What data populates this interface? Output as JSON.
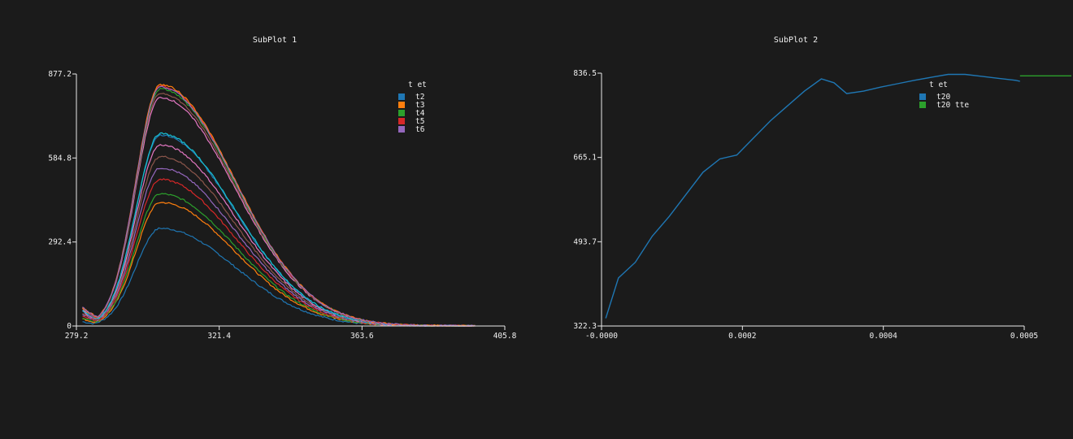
{
  "chart_data": [
    {
      "type": "line",
      "title": "SubPlot 1",
      "xlabel": "",
      "ylabel": "",
      "xlim": [
        279.2,
        405.8
      ],
      "ylim": [
        0,
        877.2
      ],
      "x_ticks": [
        "279.2",
        "321.4",
        "363.6",
        "405.8"
      ],
      "y_ticks": [
        "0",
        "292.4",
        "584.8",
        "877.2"
      ],
      "legend": {
        "title": "t  et",
        "placement": "top-right",
        "entries": [
          "t2",
          "t3",
          "t4",
          "t5",
          "t6"
        ]
      },
      "curve_model": {
        "x_start": 281,
        "x_end": 397,
        "peak_x": 304,
        "rise_sigma": 7.2,
        "tail_sigma": 22
      },
      "series": [
        {
          "name": "t2",
          "color": "#1f77b4",
          "peak": 340,
          "base": 15
        },
        {
          "name": "t3",
          "color": "#ff7f0e",
          "peak": 430,
          "base": 25
        },
        {
          "name": "t4",
          "color": "#2ca02c",
          "peak": 460,
          "base": 30
        },
        {
          "name": "t5",
          "color": "#d62728",
          "peak": 510,
          "base": 35
        },
        {
          "name": "t6",
          "color": "#9467bd",
          "peak": 550,
          "base": 40
        },
        {
          "name": "",
          "color": "#8c564b",
          "peak": 590,
          "base": 45
        },
        {
          "name": "",
          "color": "#e377c2",
          "peak": 630,
          "base": 50
        },
        {
          "name": "",
          "color": "#1f77b4",
          "peak": 665,
          "base": 55
        },
        {
          "name": "",
          "color": "#17becf",
          "peak": 670,
          "base": 55
        },
        {
          "name": "",
          "color": "#e377c2",
          "peak": 795,
          "base": 60
        },
        {
          "name": "",
          "color": "#8c564b",
          "peak": 810,
          "base": 60
        },
        {
          "name": "",
          "color": "#2ca02c",
          "peak": 825,
          "base": 62
        },
        {
          "name": "",
          "color": "#d62728",
          "peak": 835,
          "base": 62
        },
        {
          "name": "",
          "color": "#ff7f0e",
          "peak": 840,
          "base": 65
        },
        {
          "name": "",
          "color": "#9467bd",
          "peak": 832,
          "base": 65
        }
      ]
    },
    {
      "type": "line",
      "title": "SubPlot 2",
      "xlabel": "",
      "ylabel": "",
      "xlim": [
        0,
        0.0005
      ],
      "ylim": [
        322.3,
        836.5
      ],
      "x_ticks": [
        "-0.0000",
        "0.0002",
        "0.0004",
        "0.0005"
      ],
      "y_ticks": [
        "322.3",
        "493.7",
        "665.1",
        "836.5"
      ],
      "legend": {
        "title": "t  et",
        "placement": "top-right",
        "entries": [
          "t20",
          "t20  tte"
        ]
      },
      "series": [
        {
          "name": "t20",
          "color": "#1f77b4",
          "x": [
            5e-06,
            2e-05,
            4e-05,
            6e-05,
            8e-05,
            0.0001,
            0.00012,
            0.00014,
            0.00016,
            0.00018,
            0.0002,
            0.00022,
            0.00024,
            0.00026,
            0.000275,
            0.00029,
            0.00031,
            0.00033,
            0.00035,
            0.00037,
            0.00039,
            0.00041,
            0.00043,
            0.00045,
            0.00047,
            0.00049,
            0.000495
          ],
          "y": [
            338,
            420,
            452,
            505,
            545,
            590,
            635,
            662,
            670,
            705,
            740,
            770,
            800,
            825,
            817,
            795,
            800,
            808,
            815,
            822,
            828,
            834,
            834,
            830,
            826,
            822,
            820
          ]
        },
        {
          "name": "t20  tte",
          "color": "#2ca02c",
          "x": [
            0.000495,
            0.00057
          ],
          "y": [
            831,
            831
          ]
        }
      ]
    }
  ]
}
